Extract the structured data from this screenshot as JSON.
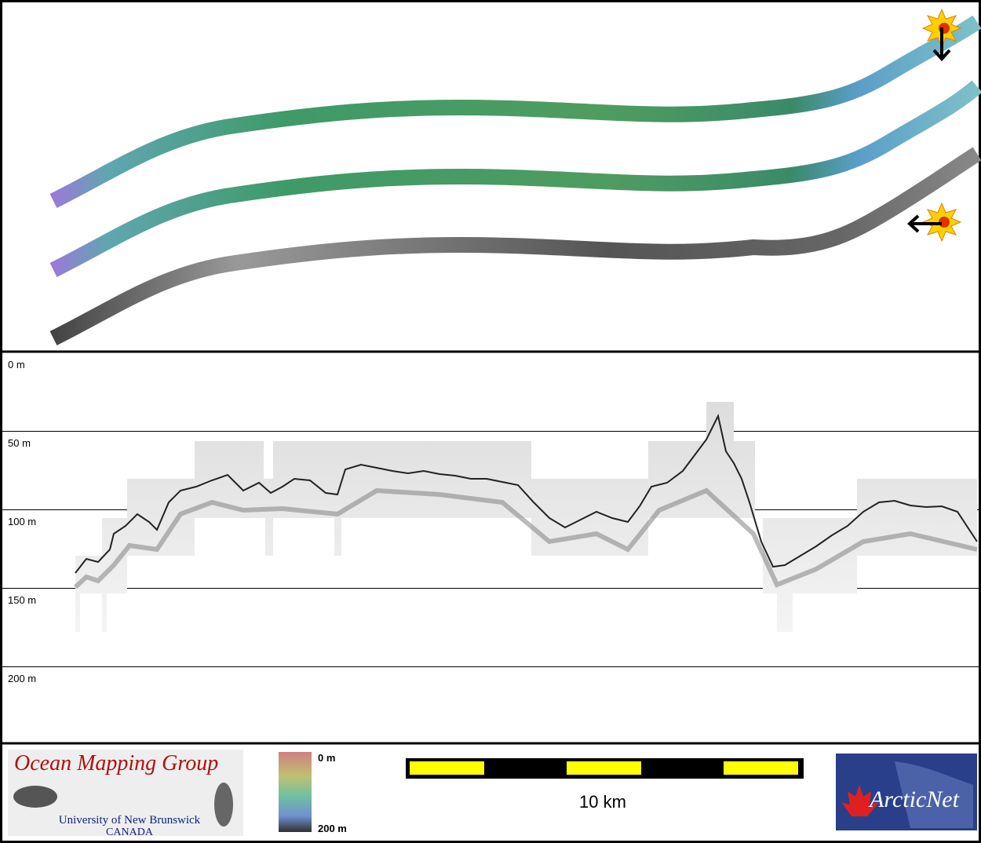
{
  "profile": {
    "depth_labels": [
      "0 m",
      "50 m",
      "100 m",
      "150 m",
      "200 m"
    ]
  },
  "footer": {
    "logo_title": "Ocean Mapping Group",
    "logo_university": "University of New Brunswick",
    "logo_country": "CANADA",
    "colorbar_top": "0 m",
    "colorbar_bottom": "200 m",
    "scale_label": "10 km",
    "partner_logo": "ArcticNet"
  }
}
